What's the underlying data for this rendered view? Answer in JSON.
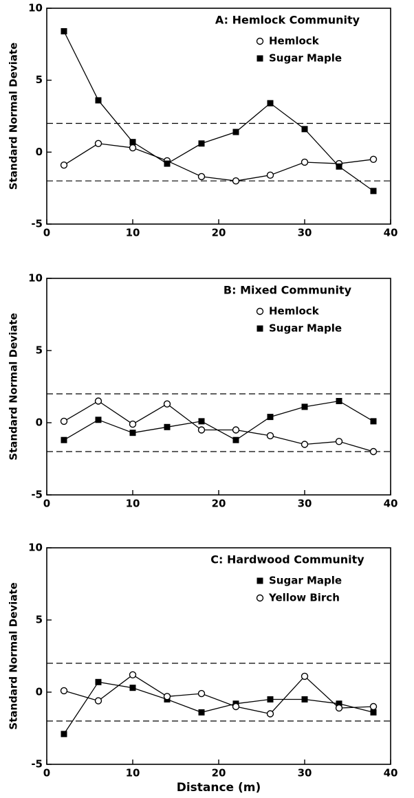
{
  "chart_data": [
    {
      "type": "line",
      "title": "A: Hemlock Community",
      "ylabel": "Standard Normal Deviate",
      "x": [
        2,
        6,
        10,
        14,
        18,
        22,
        26,
        30,
        34,
        38
      ],
      "series": [
        {
          "name": "Hemlock",
          "color": "#000000",
          "marker": "circle-open",
          "values": [
            -0.9,
            0.6,
            0.3,
            -0.6,
            -1.7,
            -2.0,
            -1.6,
            -0.7,
            -0.8,
            -0.5
          ]
        },
        {
          "name": "Sugar Maple",
          "color": "#000000",
          "marker": "square-filled",
          "values": [
            8.4,
            3.6,
            0.7,
            -0.8,
            0.6,
            1.4,
            3.4,
            1.6,
            -1.0,
            -2.7
          ]
        }
      ],
      "reference_lines": [
        2,
        -2
      ],
      "xlim": [
        0,
        40
      ],
      "xticks": [
        0,
        10,
        20,
        30,
        40
      ],
      "ylim": [
        -5,
        10
      ],
      "yticks": [
        -5,
        0,
        5,
        10
      ],
      "legend": "upper right"
    },
    {
      "type": "line",
      "title": "B: Mixed Community",
      "ylabel": "Standard Normal Deviate",
      "x": [
        2,
        6,
        10,
        14,
        18,
        22,
        26,
        30,
        34,
        38
      ],
      "series": [
        {
          "name": "Hemlock",
          "color": "#000000",
          "marker": "circle-open",
          "values": [
            0.1,
            1.5,
            -0.1,
            1.3,
            -0.5,
            -0.5,
            -0.9,
            -1.5,
            -1.3,
            -2.0
          ]
        },
        {
          "name": "Sugar Maple",
          "color": "#000000",
          "marker": "square-filled",
          "values": [
            -1.2,
            0.2,
            -0.7,
            -0.3,
            0.1,
            -1.2,
            0.4,
            1.1,
            1.5,
            0.1
          ]
        }
      ],
      "reference_lines": [
        2,
        -2
      ],
      "xlim": [
        0,
        40
      ],
      "xticks": [
        0,
        10,
        20,
        30,
        40
      ],
      "ylim": [
        -5,
        10
      ],
      "yticks": [
        -5,
        0,
        5,
        10
      ],
      "legend": "upper right"
    },
    {
      "type": "line",
      "title": "C: Hardwood Community",
      "ylabel": "Standard Normal Deviate",
      "xlabel": "Distance (m)",
      "x": [
        2,
        6,
        10,
        14,
        18,
        22,
        26,
        30,
        34,
        38
      ],
      "series": [
        {
          "name": "Sugar Maple",
          "color": "#000000",
          "marker": "square-filled",
          "values": [
            -2.9,
            0.7,
            0.3,
            -0.5,
            -1.4,
            -0.8,
            -0.5,
            -0.5,
            -0.8,
            -1.4
          ]
        },
        {
          "name": "Yellow Birch",
          "color": "#000000",
          "marker": "circle-open",
          "values": [
            0.1,
            -0.6,
            1.2,
            -0.3,
            -0.1,
            -1.0,
            -1.5,
            1.1,
            -1.1,
            -1.0
          ]
        }
      ],
      "reference_lines": [
        2,
        -2
      ],
      "xlim": [
        0,
        40
      ],
      "xticks": [
        0,
        10,
        20,
        30,
        40
      ],
      "ylim": [
        -5,
        10
      ],
      "yticks": [
        -5,
        0,
        5,
        10
      ],
      "legend": "upper right"
    }
  ]
}
